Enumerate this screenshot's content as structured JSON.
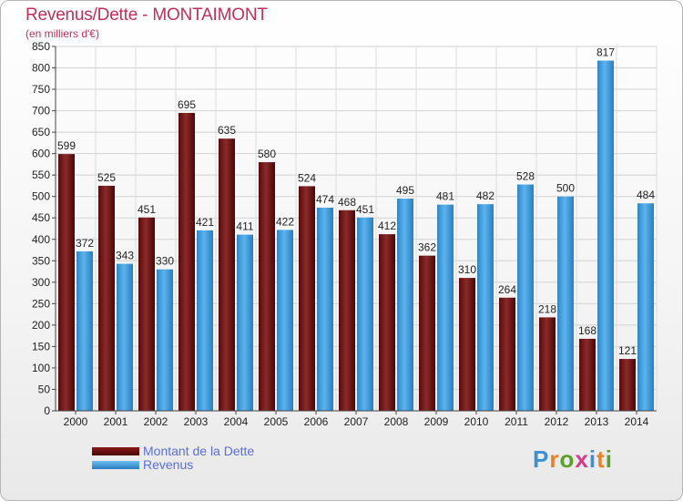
{
  "title": "Revenus/Dette - MONTAIMONT",
  "subtitle": "(en milliers d'€)",
  "colors": {
    "dette": "#6e1010",
    "revenus": "#3d9fe0"
  },
  "legend": [
    {
      "label": "Montant de la Dette"
    },
    {
      "label": "Revenus"
    }
  ],
  "logo": {
    "text": "Proxiti"
  },
  "chart_data": {
    "type": "bar",
    "title": "Revenus/Dette - MONTAIMONT",
    "ylabel": "(en milliers d'€)",
    "xlabel": "",
    "ylim": [
      0,
      850
    ],
    "yticks": [
      0,
      50,
      100,
      150,
      200,
      250,
      300,
      350,
      400,
      450,
      500,
      550,
      600,
      650,
      700,
      750,
      800,
      850
    ],
    "grid": true,
    "categories": [
      "2000",
      "2001",
      "2002",
      "2003",
      "2004",
      "2005",
      "2006",
      "2007",
      "2008",
      "2009",
      "2010",
      "2011",
      "2012",
      "2013",
      "2014"
    ],
    "series": [
      {
        "name": "Montant de la Dette",
        "values": [
          599,
          525,
          451,
          695,
          635,
          580,
          524,
          468,
          412,
          362,
          310,
          264,
          218,
          168,
          121
        ]
      },
      {
        "name": "Revenus",
        "values": [
          372,
          343,
          330,
          421,
          411,
          422,
          474,
          451,
          495,
          481,
          482,
          528,
          500,
          817,
          484
        ]
      }
    ]
  }
}
